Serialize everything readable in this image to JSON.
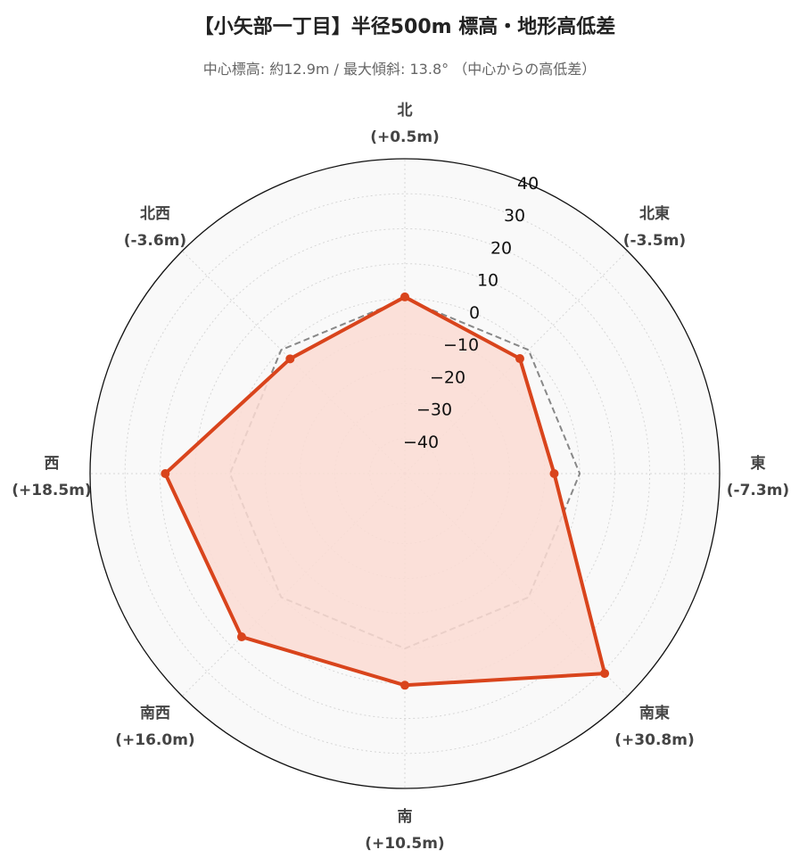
{
  "title": "【小矢部一丁目】半径500m 標高・地形高低差",
  "subtitle": "中心標高: 約12.9m / 最大傾斜: 13.8° （中心からの高低差）",
  "chart_data": {
    "type": "radar",
    "directions": [
      "北",
      "北東",
      "東",
      "南東",
      "南",
      "南西",
      "西",
      "北西"
    ],
    "value_labels": [
      "(+0.5m)",
      "(-3.5m)",
      "(-7.3m)",
      "(+30.8m)",
      "(+10.5m)",
      "(+16.0m)",
      "(+18.5m)",
      "(-3.6m)"
    ],
    "series": [
      {
        "values": [
          0.5,
          -3.5,
          -7.3,
          30.8,
          10.5,
          16.0,
          18.5,
          -3.6
        ],
        "color": "#d9441c",
        "fill": "#fcdcd3"
      }
    ],
    "reference": {
      "values": [
        0,
        0,
        0,
        0,
        0,
        0,
        0,
        0
      ],
      "color": "#888888",
      "dashed": true
    },
    "r_ticks": [
      -40,
      -30,
      -20,
      -10,
      0,
      10,
      20,
      30,
      40
    ],
    "r_tick_labels": [
      "−40",
      "−30",
      "−20",
      "−10",
      "0",
      "10",
      "20",
      "30",
      "40"
    ],
    "rlim": [
      -50,
      40
    ],
    "grid": true
  }
}
